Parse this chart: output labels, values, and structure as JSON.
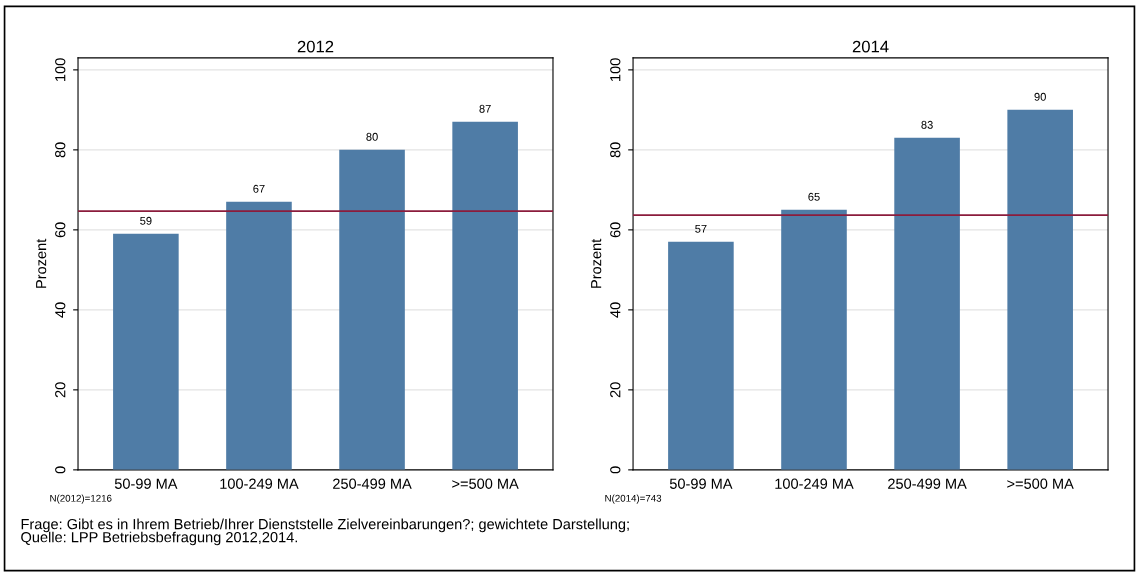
{
  "chart_data": [
    {
      "type": "bar",
      "title": "2012",
      "ylabel": "Prozent",
      "categories": [
        "50-99 MA",
        "100-249 MA",
        "250-499 MA",
        ">=500 MA"
      ],
      "values": [
        59,
        67,
        80,
        87
      ],
      "color": "#4f7ca6",
      "data_labels": true,
      "ylim": [
        0,
        103
      ],
      "yticks": [
        0,
        20,
        40,
        60,
        80,
        100
      ],
      "grid": "y",
      "ref_lines": [
        {
          "axis": "y",
          "value": 64.7,
          "color": "#8b1c3c"
        }
      ],
      "annotations": [
        "N(2012)=1216",
        "Frage: Gibt es in Ihrem Betrieb/Ihrer Dienststelle Zielvereinbarungen?; gewichtete Darstellung;\nQuelle: LPP Betriebsbefragung 2012,2014."
      ]
    },
    {
      "type": "bar",
      "title": "2014",
      "ylabel": "Prozent",
      "categories": [
        "50-99 MA",
        "100-249 MA",
        "250-499 MA",
        ">=500 MA"
      ],
      "values": [
        57,
        65,
        83,
        90
      ],
      "color": "#4f7ca6",
      "data_labels": true,
      "ylim": [
        0,
        103
      ],
      "yticks": [
        0,
        20,
        40,
        60,
        80,
        100
      ],
      "grid": "y",
      "ref_lines": [
        {
          "axis": "y",
          "value": 63.7,
          "color": "#8b1c3c"
        }
      ],
      "annotations": [
        "N(2014)=743"
      ]
    }
  ]
}
